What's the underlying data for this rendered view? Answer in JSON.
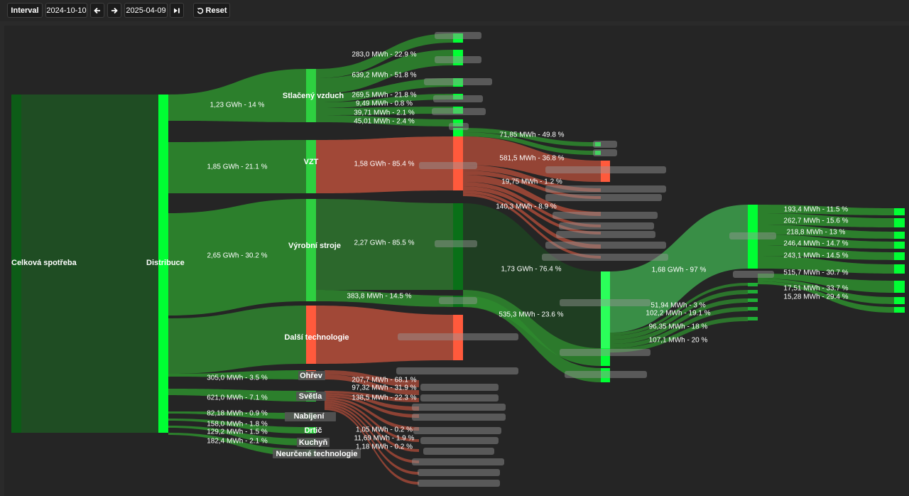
{
  "toolbar": {
    "interval_label": "Interval",
    "date_from": "2024-10-10",
    "date_to": "2025-04-09",
    "reset_label": "Reset",
    "prev_icon": "arrow-left-icon",
    "next_icon": "arrow-right-icon",
    "last_icon": "skip-to-end-icon",
    "reset_icon": "reset-icon"
  },
  "colors": {
    "accent_green": "#00ff33",
    "flow_green": "#2e8a2e",
    "flow_red": "#a84a38",
    "node_red": "#ff5a3c",
    "node_dark": "#0a6a18"
  },
  "chart_data": {
    "type": "sankey",
    "nodes": [
      {
        "id": "celkova",
        "label": "Celková spotřeba"
      },
      {
        "id": "distribuce",
        "label": "Distribuce"
      },
      {
        "id": "vzduch",
        "label": "Stlačený vzduch"
      },
      {
        "id": "vzt",
        "label": "VZT"
      },
      {
        "id": "vyrobni",
        "label": "Výrobní stroje"
      },
      {
        "id": "dalsi",
        "label": "Další technologie"
      },
      {
        "id": "ohrev",
        "label": "Ohřev"
      },
      {
        "id": "svetla",
        "label": "Světla"
      },
      {
        "id": "nabijeni",
        "label": "Nabíjení"
      },
      {
        "id": "drtic",
        "label": "Drtič"
      },
      {
        "id": "kuchyn",
        "label": "Kuchyň"
      },
      {
        "id": "neurcene",
        "label": "Neurčené technologie"
      }
    ],
    "links": [
      {
        "source": "celkova",
        "target": "distribuce",
        "label": ""
      },
      {
        "source": "distribuce",
        "target": "vzduch",
        "label": "1,23 GWh - 14 %"
      },
      {
        "source": "distribuce",
        "target": "vzt",
        "label": "1,85 GWh - 21.1 %"
      },
      {
        "source": "distribuce",
        "target": "vyrobni",
        "label": "2,65 GWh - 30.2 %"
      },
      {
        "source": "distribuce",
        "target": "ohrev",
        "label": "305,0 MWh - 3.5 %"
      },
      {
        "source": "distribuce",
        "target": "svetla",
        "label": "621,0 MWh - 7.1 %"
      },
      {
        "source": "distribuce",
        "target": "nabijeni",
        "label": "82,18 MWh - 0.9 %"
      },
      {
        "source": "distribuce",
        "target": "drtic",
        "label": "158,0 MWh - 1.8 %"
      },
      {
        "source": "distribuce",
        "target": "kuchyn",
        "label": "129,2 MWh - 1.5 %"
      },
      {
        "source": "distribuce",
        "target": "neurcene",
        "label": "182,4 MWh - 2.1 %"
      }
    ],
    "flow_labels": [
      "283,0 MWh - 22.9 %",
      "639,2 MWh - 51.8 %",
      "269,5 MWh - 21.8 %",
      "9,49 MWh - 0.8 %",
      "39,71 MWh - 2.1 %",
      "45,01 MWh - 2.4 %",
      "1,58 GWh - 85.4 %",
      "2,27 GWh - 85.5 %",
      "383,8 MWh - 14.5 %",
      "71,85 MWh - 49.8 %",
      "581,5 MWh - 36.8 %",
      "19,75 MWh - 1.2 %",
      "140,3 MWh - 8.9 %",
      "1,73 GWh - 76.4 %",
      "535,3 MWh - 23.6 %",
      "1,68 GWh - 97 %",
      "51,94 MWh - 3 %",
      "102,2 MWh - 19.1 %",
      "96,35 MWh - 18 %",
      "107,1 MWh - 20 %",
      "193,4 MWh - 11.5 %",
      "262,7 MWh - 15.6 %",
      "218,8 MWh - 13 %",
      "246,4 MWh - 14.7 %",
      "243,1 MWh - 14.5 %",
      "515,7 MWh - 30.7 %",
      "17,51 MWh - 33.7 %",
      "15,28 MWh - 29.4 %",
      "207,7 MWh - 68.1 %",
      "97,32 MWh - 31.9 %",
      "138,5 MWh - 22.3 %",
      "1,05 MWh - 0.2 %",
      "11,69 MWh - 1.9 %",
      "1,18 MWh - 0.2 %"
    ]
  }
}
